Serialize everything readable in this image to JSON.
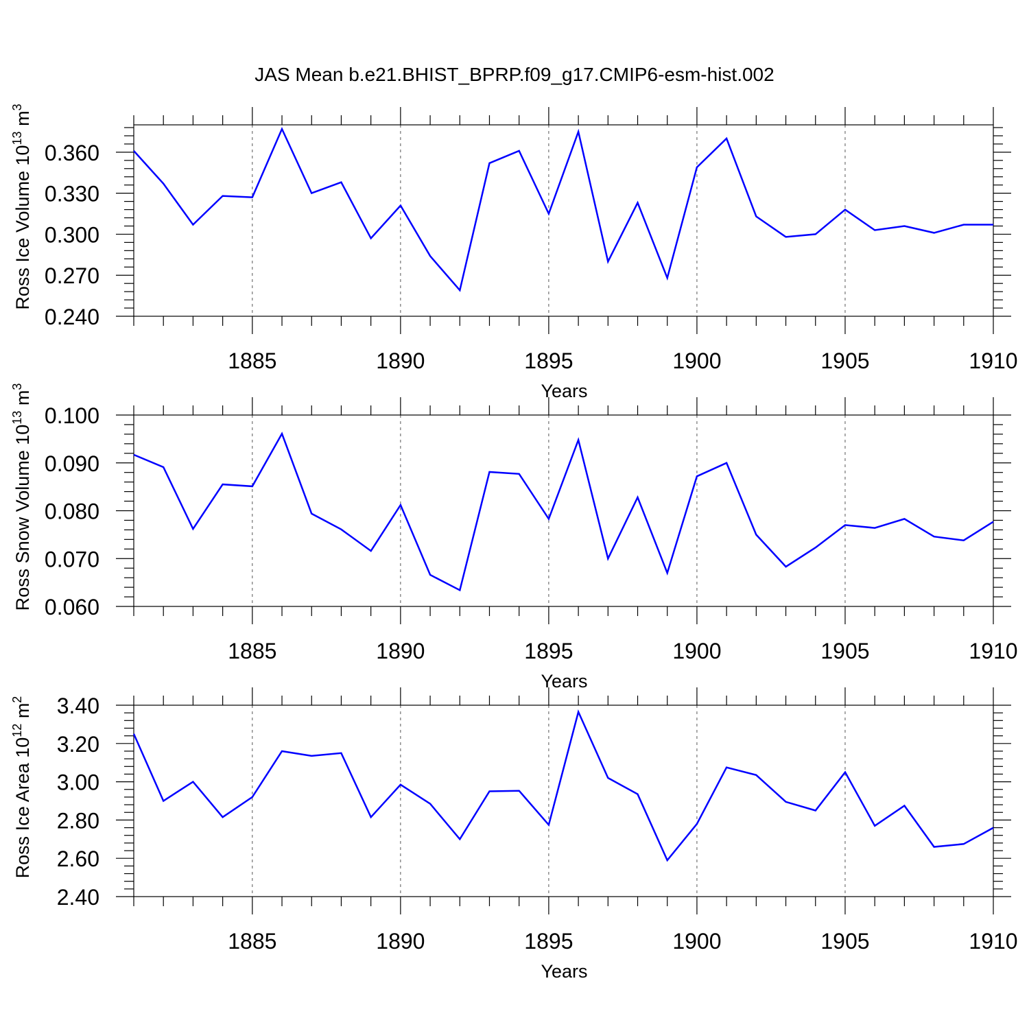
{
  "title": "JAS Mean b.e21.BHIST_BPRP.f09_g17.CMIP6-esm-hist.002",
  "chart_data": [
    {
      "type": "line",
      "title": "JAS Mean b.e21.BHIST_BPRP.f09_g17.CMIP6-esm-hist.002",
      "xlabel": "Years",
      "ylabel": {
        "prefix": "Ross Ice Volume 10",
        "exponent": "13",
        "unit": " m",
        "unit_exponent": "3"
      },
      "x": [
        1881,
        1882,
        1883,
        1884,
        1885,
        1886,
        1887,
        1888,
        1889,
        1890,
        1891,
        1892,
        1893,
        1894,
        1895,
        1896,
        1897,
        1898,
        1899,
        1900,
        1901,
        1902,
        1903,
        1904,
        1905,
        1906,
        1907,
        1908,
        1909,
        1910
      ],
      "series": [
        {
          "values": [
            0.361,
            0.337,
            0.307,
            0.328,
            0.327,
            0.377,
            0.33,
            0.338,
            0.297,
            0.321,
            0.284,
            0.259,
            0.352,
            0.361,
            0.315,
            0.375,
            0.28,
            0.323,
            0.268,
            0.349,
            0.37,
            0.313,
            0.298,
            0.3,
            0.318,
            0.303,
            0.306,
            0.301,
            0.307,
            0.307
          ]
        }
      ],
      "xlim": [
        1881,
        1910
      ],
      "ylim": [
        0.24,
        0.38
      ],
      "xticks": [
        "1885",
        "1890",
        "1895",
        "1900",
        "1905",
        "1910"
      ],
      "yticks": [
        "0.240",
        "0.270",
        "0.300",
        "0.330",
        "0.360"
      ],
      "grid": "dashed vertical at 5-year ticks",
      "line_color": "#0000ff"
    },
    {
      "type": "line",
      "xlabel": "Years",
      "ylabel": {
        "prefix": "Ross Snow Volume 10",
        "exponent": "13",
        "unit": " m",
        "unit_exponent": "3"
      },
      "x": [
        1881,
        1882,
        1883,
        1884,
        1885,
        1886,
        1887,
        1888,
        1889,
        1890,
        1891,
        1892,
        1893,
        1894,
        1895,
        1896,
        1897,
        1898,
        1899,
        1900,
        1901,
        1902,
        1903,
        1904,
        1905,
        1906,
        1907,
        1908,
        1909,
        1910
      ],
      "series": [
        {
          "values": [
            0.0917,
            0.0891,
            0.0762,
            0.0855,
            0.0851,
            0.0961,
            0.0794,
            0.0761,
            0.0716,
            0.0812,
            0.0666,
            0.0634,
            0.0881,
            0.0877,
            0.0783,
            0.0948,
            0.07,
            0.0828,
            0.067,
            0.0872,
            0.09,
            0.075,
            0.0683,
            0.0723,
            0.077,
            0.0764,
            0.0783,
            0.0746,
            0.0738,
            0.0777
          ]
        }
      ],
      "xlim": [
        1881,
        1910
      ],
      "ylim": [
        0.06,
        0.1
      ],
      "xticks": [
        "1885",
        "1890",
        "1895",
        "1900",
        "1905",
        "1910"
      ],
      "yticks": [
        "0.060",
        "0.070",
        "0.080",
        "0.090",
        "0.100"
      ],
      "grid": "dashed vertical at 5-year ticks",
      "line_color": "#0000ff"
    },
    {
      "type": "line",
      "xlabel": "Years",
      "ylabel": {
        "prefix": "Ross Ice Area 10",
        "exponent": "12",
        "unit": " m",
        "unit_exponent": "2"
      },
      "x": [
        1881,
        1882,
        1883,
        1884,
        1885,
        1886,
        1887,
        1888,
        1889,
        1890,
        1891,
        1892,
        1893,
        1894,
        1895,
        1896,
        1897,
        1898,
        1899,
        1900,
        1901,
        1902,
        1903,
        1904,
        1905,
        1906,
        1907,
        1908,
        1909,
        1910
      ],
      "series": [
        {
          "values": [
            3.25,
            2.9,
            3.0,
            2.815,
            2.92,
            3.16,
            3.135,
            3.15,
            2.815,
            2.985,
            2.885,
            2.7,
            2.95,
            2.953,
            2.775,
            3.365,
            3.02,
            2.935,
            2.59,
            2.78,
            3.075,
            3.035,
            2.895,
            2.85,
            3.05,
            2.77,
            2.875,
            2.66,
            2.675,
            2.76
          ]
        }
      ],
      "xlim": [
        1881,
        1910
      ],
      "ylim": [
        2.4,
        3.4
      ],
      "xticks": [
        "1885",
        "1890",
        "1895",
        "1900",
        "1905",
        "1910"
      ],
      "yticks": [
        "2.40",
        "2.60",
        "2.80",
        "3.00",
        "3.20",
        "3.40"
      ],
      "grid": "dashed vertical at 5-year ticks",
      "line_color": "#0000ff"
    }
  ]
}
